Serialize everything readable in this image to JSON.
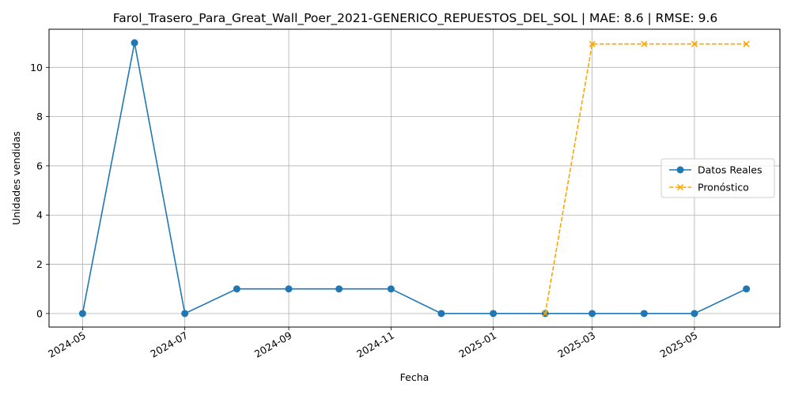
{
  "chart_data": {
    "type": "line",
    "title": "Farol_Trasero_Para_Great_Wall_Poer_2021-GENERICO_REPUESTOS_DEL_SOL | MAE: 8.6 | RMSE: 9.6",
    "xlabel": "Fecha",
    "ylabel": "Unidades vendidas",
    "x_ticks": [
      "2024-05",
      "2024-07",
      "2024-09",
      "2024-11",
      "2025-01",
      "2025-03",
      "2025-05"
    ],
    "y_ticks": [
      0,
      2,
      4,
      6,
      8,
      10
    ],
    "ylim": [
      -0.55,
      11.55
    ],
    "xlim": [
      "2024-04-11",
      "2025-06-21"
    ],
    "grid": true,
    "legend_position": "center-right",
    "series": [
      {
        "name": "Datos Reales",
        "color": "#1f77b4",
        "linestyle": "solid",
        "marker": "circle",
        "points": [
          {
            "x": "2024-05-01",
            "y": 0
          },
          {
            "x": "2024-06-01",
            "y": 11
          },
          {
            "x": "2024-07-01",
            "y": 0
          },
          {
            "x": "2024-08-01",
            "y": 1
          },
          {
            "x": "2024-09-01",
            "y": 1
          },
          {
            "x": "2024-10-01",
            "y": 1
          },
          {
            "x": "2024-11-01",
            "y": 1
          },
          {
            "x": "2024-12-01",
            "y": 0
          },
          {
            "x": "2025-01-01",
            "y": 0
          },
          {
            "x": "2025-02-01",
            "y": 0
          },
          {
            "x": "2025-03-01",
            "y": 0
          },
          {
            "x": "2025-04-01",
            "y": 0
          },
          {
            "x": "2025-05-01",
            "y": 0
          },
          {
            "x": "2025-06-01",
            "y": 1
          }
        ]
      },
      {
        "name": "Pronóstico",
        "color": "#ffa500",
        "linestyle": "dashed",
        "marker": "x",
        "points": [
          {
            "x": "2025-02-01",
            "y": 0
          },
          {
            "x": "2025-03-01",
            "y": 10.95
          },
          {
            "x": "2025-04-01",
            "y": 10.95
          },
          {
            "x": "2025-05-01",
            "y": 10.95
          },
          {
            "x": "2025-06-01",
            "y": 10.95
          }
        ]
      }
    ]
  }
}
